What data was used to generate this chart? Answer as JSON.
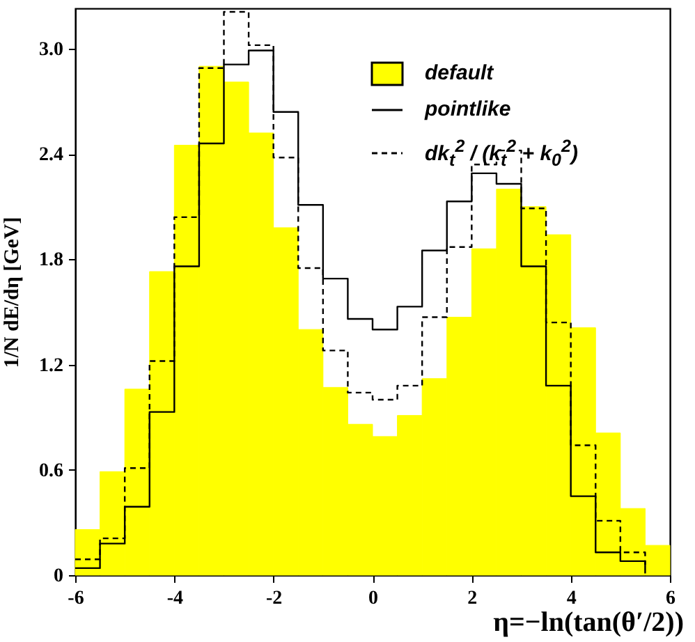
{
  "chart_data": {
    "type": "histogram",
    "xlabel": "η=−ln(tan(θ′/2))",
    "ylabel": "1/N dE/dη  [GeV]",
    "bins": [
      -6,
      -5.5,
      -5,
      -4.5,
      -4,
      -3.5,
      -3,
      -2.5,
      -2,
      -1.5,
      -1,
      -0.5,
      0,
      0.5,
      1,
      1.5,
      2,
      2.5,
      3,
      3.5,
      4,
      4.5,
      5,
      5.5,
      6
    ],
    "series": [
      {
        "name": "default",
        "color": "#ffff00",
        "values": [
          0.26,
          0.59,
          1.06,
          1.73,
          2.45,
          2.9,
          2.81,
          2.52,
          1.98,
          1.4,
          1.07,
          0.86,
          0.79,
          0.91,
          1.12,
          1.47,
          1.86,
          2.2,
          2.1,
          1.94,
          1.41,
          0.81,
          0.38,
          0.17
        ]
      },
      {
        "name": "pointlike",
        "type": "step",
        "color": "#000000",
        "x": [
          -6,
          -5.5,
          -5,
          -4.5,
          -4,
          -3.5,
          -3,
          -2.5,
          -2,
          -1.5,
          -1,
          -0.5,
          0,
          0.5,
          1,
          1.5,
          2,
          2.5,
          3,
          3.5,
          4,
          4.5,
          5,
          5.5
        ],
        "values": [
          0.04,
          0.18,
          0.39,
          0.93,
          1.76,
          2.46,
          2.91,
          2.99,
          2.64,
          2.11,
          1.69,
          1.46,
          1.4,
          1.53,
          1.85,
          2.13,
          2.29,
          2.23,
          1.76,
          1.08,
          0.45,
          0.13,
          0.08,
          0.01
        ]
      },
      {
        "name": "dk$_{t}$$^{2}$ / (k$_{t}$$^{2}$ + k$_{0}$$^{2}$)",
        "type": "step",
        "color": "#000000",
        "line_style": "dashed",
        "x": [
          -6,
          -5.5,
          -5,
          -4.5,
          -4,
          -3.5,
          -3,
          -2.5,
          -2,
          -1.5,
          -1,
          -0.5,
          0,
          0.5,
          1,
          1.5,
          2,
          2.5,
          3,
          3.5,
          4,
          4.5,
          5,
          5.5
        ],
        "values": [
          0.09,
          0.21,
          0.61,
          1.22,
          2.04,
          2.89,
          3.21,
          3.02,
          2.38,
          1.75,
          1.28,
          1.04,
          1.0,
          1.08,
          1.47,
          1.87,
          2.34,
          2.42,
          2.09,
          1.44,
          0.74,
          0.31,
          0.13,
          0.06
        ]
      }
    ],
    "xlim": [
      -6,
      6
    ],
    "xticks": [
      -6,
      -4,
      -2,
      0,
      2,
      4,
      6
    ],
    "ylim": [
      0,
      3.23
    ],
    "yticks": [
      0,
      0.6,
      1.2,
      1.8,
      2.4,
      {
        "value": 3,
        "label": "3.0"
      }
    ],
    "legend": "top right",
    "grid": false
  }
}
